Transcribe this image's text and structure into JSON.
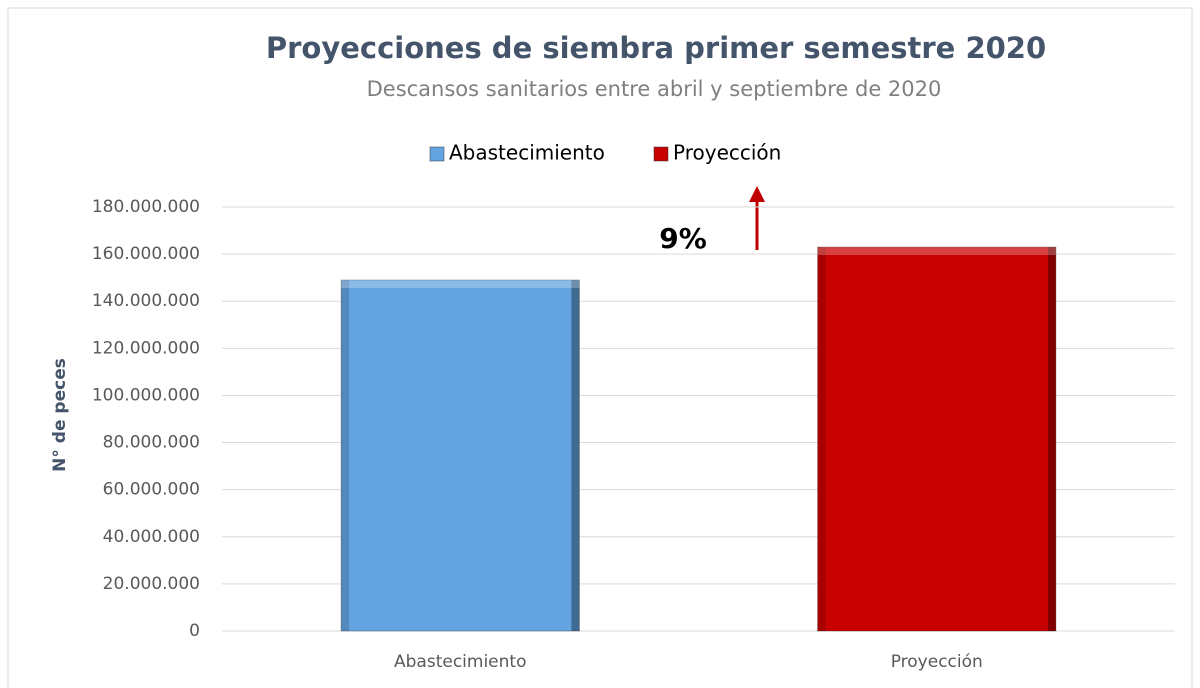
{
  "chart_data": {
    "type": "bar",
    "title": "Proyecciones de siembra primer semestre 2020",
    "subtitle": "Descansos sanitarios entre abril y septiembre de 2020",
    "y_label": "N° de peces",
    "categories": [
      "Abastecimiento",
      "Proyección"
    ],
    "values": [
      149000000,
      163000000
    ],
    "colors": [
      "#62a3e0",
      "#c80000"
    ],
    "annotation": "9%",
    "ylim": [
      0,
      180000000
    ],
    "yticks": [
      0,
      {
        "value": 20000000,
        "label": "20.000.000"
      },
      {
        "value": 40000000,
        "label": "40.000.000"
      },
      {
        "value": 60000000,
        "label": "60.000.000"
      },
      {
        "value": 80000000,
        "label": "80.000.000"
      },
      {
        "value": 100000000,
        "label": "100.000.000"
      },
      {
        "value": 120000000,
        "label": "120.000.000"
      },
      {
        "value": 140000000,
        "label": "140.000.000"
      },
      {
        "value": 160000000,
        "label": "160.000.000"
      },
      {
        "value": 180000000,
        "label": "180.000.000"
      }
    ],
    "grid": true,
    "legend": "top"
  }
}
